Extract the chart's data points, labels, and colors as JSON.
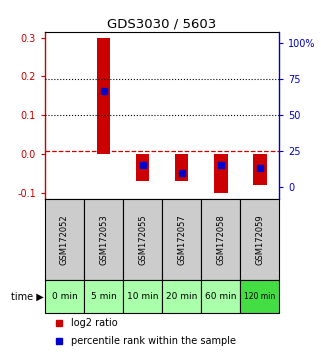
{
  "title": "GDS3030 / 5603",
  "samples": [
    "GSM172052",
    "GSM172053",
    "GSM172055",
    "GSM172057",
    "GSM172058",
    "GSM172059"
  ],
  "time_labels": [
    "0 min",
    "5 min",
    "10 min",
    "20 min",
    "60 min",
    "120 min"
  ],
  "log2_ratio": [
    0.0,
    0.3,
    -0.07,
    -0.07,
    -0.1,
    -0.08
  ],
  "percentile_rank": [
    null,
    67.0,
    15.0,
    10.0,
    15.0,
    13.0
  ],
  "left_yticks": [
    -0.1,
    0.0,
    0.1,
    0.2,
    0.3
  ],
  "right_yticks": [
    0,
    25,
    50,
    75,
    100
  ],
  "ylim_left": [
    -0.115,
    0.315
  ],
  "ylim_right": [
    -8.05,
    108.05
  ],
  "bar_color": "#cc0000",
  "dot_color": "#0000cc",
  "zero_line_color": "#cc0000",
  "header_bg": "#cccccc",
  "time_bg_light": "#aaffaa",
  "time_bg_dark": "#44dd44",
  "title_color": "#000000",
  "left_axis_color": "#cc0000",
  "right_axis_color": "#0000cc",
  "bar_width": 0.35
}
